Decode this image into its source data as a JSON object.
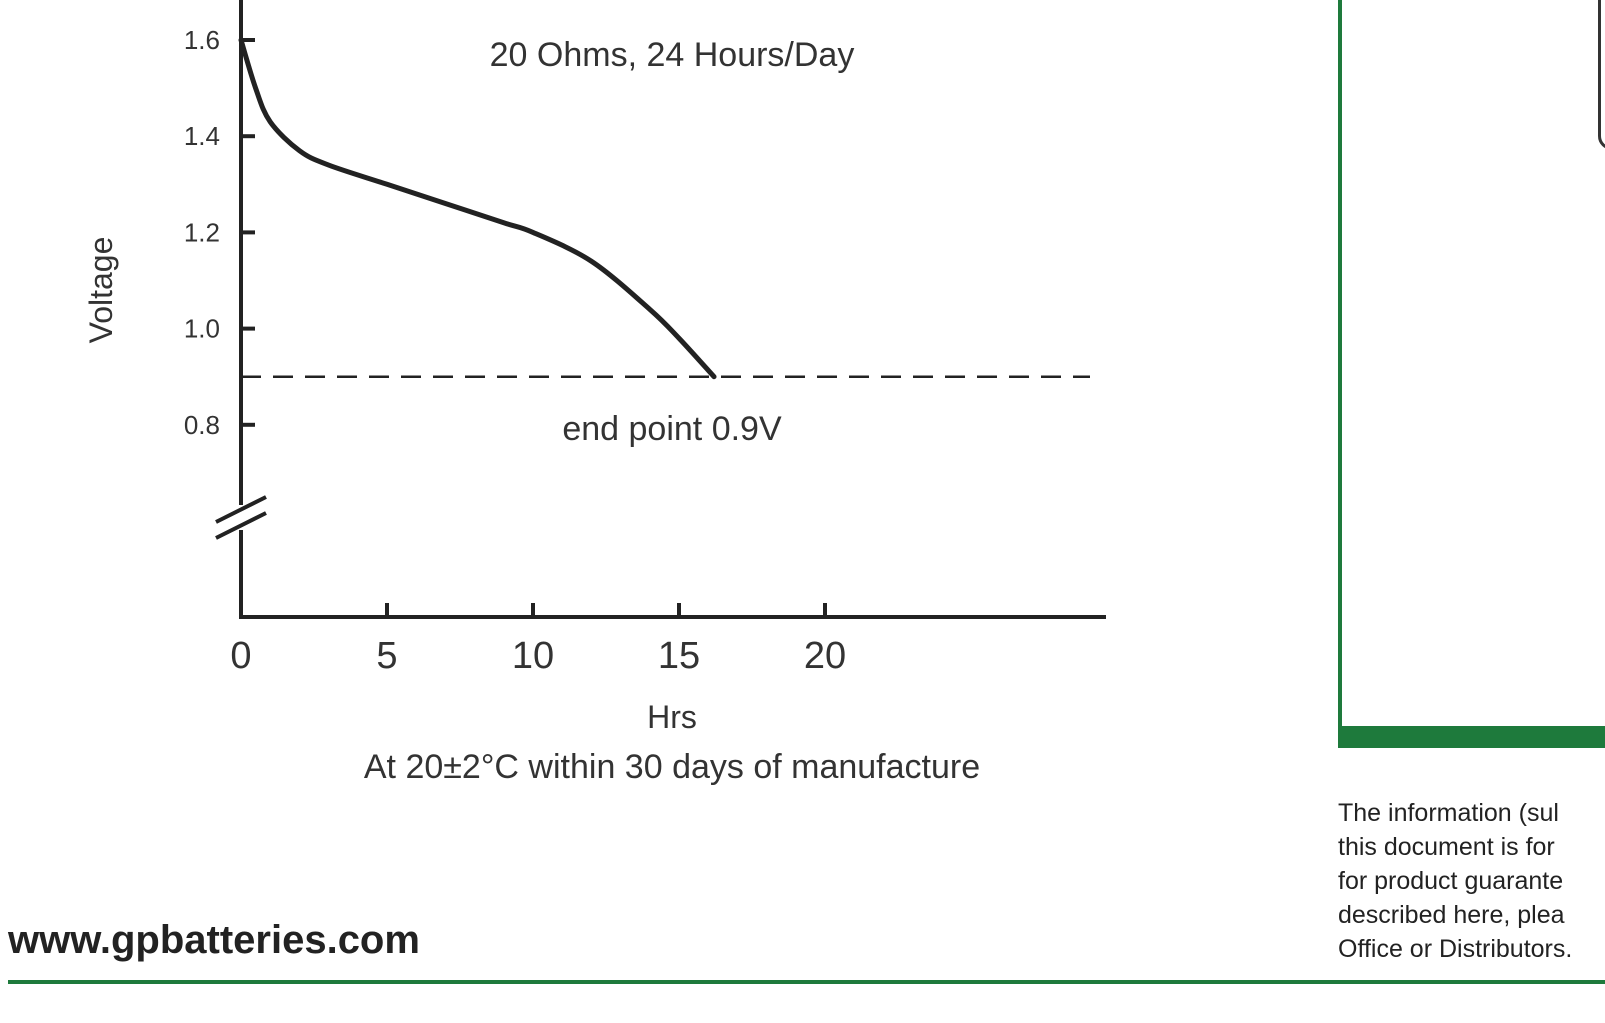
{
  "chart_data": {
    "type": "line",
    "title": "20 Ohms, 24 Hours/Day",
    "xlabel": "Hrs",
    "ylabel": "Voltage",
    "footnote": "At 20±2°C within 30 days of manufacture",
    "x_ticks": [
      "0",
      "5",
      "10",
      "15",
      "20"
    ],
    "y_ticks": [
      "0.8",
      "1.0",
      "1.2",
      "1.4",
      "1.6"
    ],
    "y_axis_break": true,
    "grid": false,
    "series": [
      {
        "x": [
          0,
          0.5,
          1,
          2,
          3,
          5,
          7,
          9,
          10,
          12,
          14,
          15,
          16.2
        ],
        "y": [
          1.6,
          1.5,
          1.43,
          1.37,
          1.34,
          1.3,
          1.26,
          1.22,
          1.2,
          1.14,
          1.04,
          0.98,
          0.9
        ]
      }
    ],
    "reference_line": {
      "y": 0.9,
      "style": "dashed",
      "label": "end point 0.9V"
    }
  },
  "sidebar": {
    "disclaimer_lines": [
      "The information (sul",
      "this document is for",
      "for product guarante",
      "described here, plea",
      "Office or Distributors."
    ]
  },
  "footer": {
    "website": "www.gpbatteries.com"
  },
  "colors": {
    "brand_green": "#1e7a3c",
    "curve": "#222222"
  }
}
